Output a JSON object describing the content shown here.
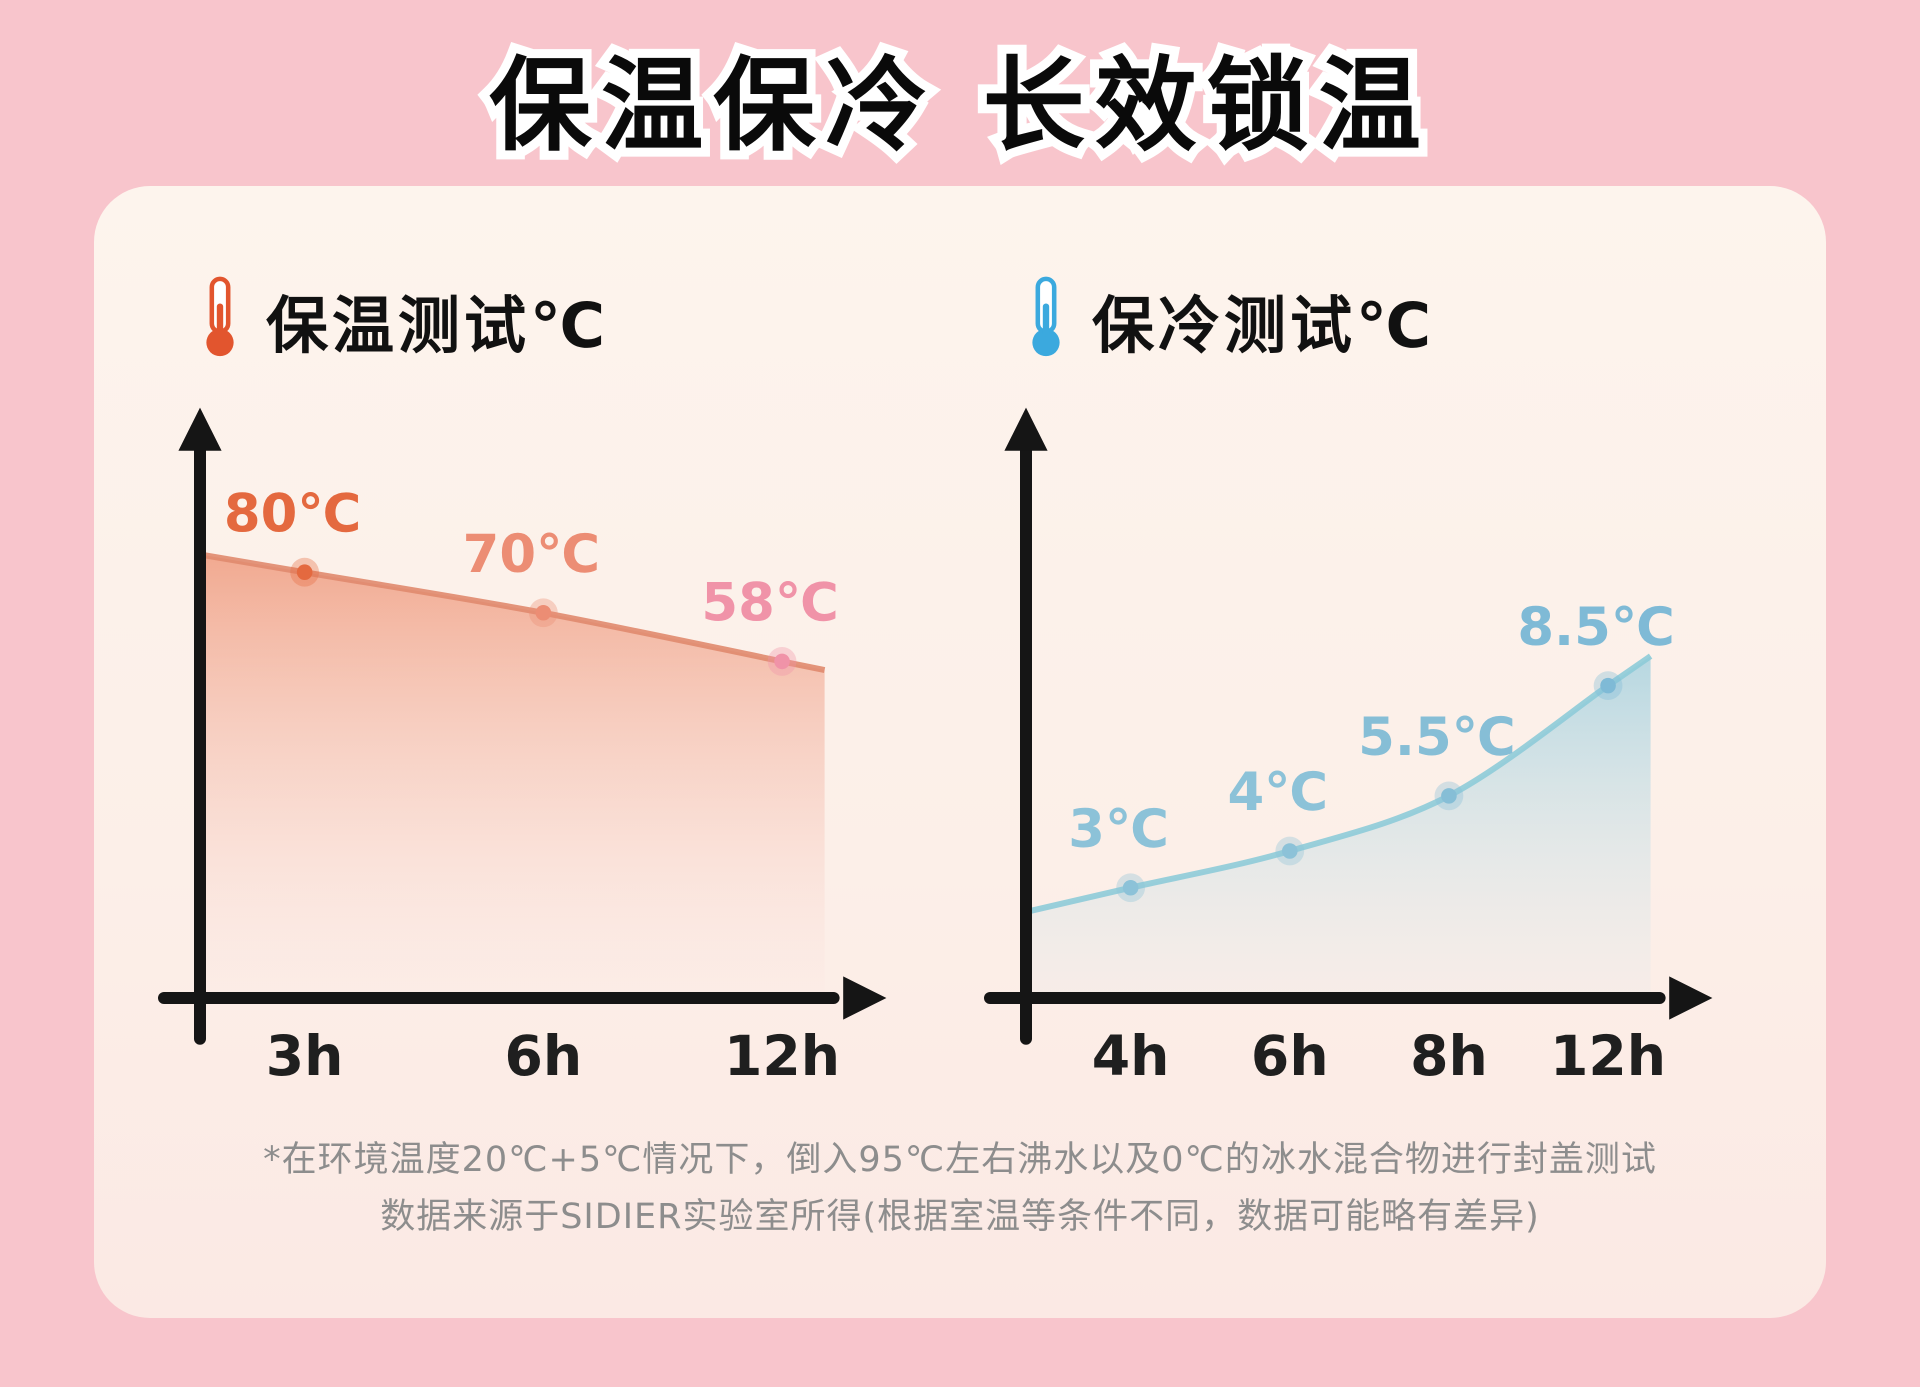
{
  "page": {
    "title": "保温保冷 长效锁温",
    "footnote_line1": "*在环境温度20℃+5℃情况下，倒入95℃左右沸水以及0℃的冰水混合物进行封盖测试",
    "footnote_line2": "数据来源于SIDIER实验室所得(根据室温等条件不同，数据可能略有差异)"
  },
  "colors": {
    "background": "#f8c5cc",
    "card": "#fdf2ec",
    "footnote": "#8d8d8d",
    "axis": "#151515",
    "hot_accent": "#e2552e",
    "cold_accent": "#3ba9de"
  },
  "chart_data": [
    {
      "type": "line",
      "title": "保温测试℃",
      "icon": "hot-thermometer-icon",
      "accent": "#e2552e",
      "categories": [
        "3h",
        "6h",
        "12h"
      ],
      "values": [
        80,
        70,
        58
      ],
      "point_labels": [
        "80℃",
        "70℃",
        "58℃"
      ],
      "label_colors": [
        "#e4693f",
        "#ec8d74",
        "#f093a8"
      ],
      "line_color": "#e08a6e",
      "area_top_color": "rgba(232,110,70,0.55)",
      "area_mid_color": "rgba(240,160,140,0.28)",
      "area_bottom_color": "rgba(248,205,205,0.03)",
      "ylim": [
        -25,
        120
      ],
      "xlabel": "",
      "ylabel": "",
      "grid": false,
      "legend": "none"
    },
    {
      "type": "line",
      "title": "保冷测试℃",
      "icon": "cold-thermometer-icon",
      "accent": "#3ba9de",
      "categories": [
        "4h",
        "6h",
        "8h",
        "12h"
      ],
      "values": [
        3,
        4,
        5.5,
        8.5
      ],
      "point_labels": [
        "3℃",
        "4℃",
        "5.5℃",
        "8.5℃"
      ],
      "label_colors": [
        "#8cc2d8",
        "#8cc2d8",
        "#86bed6",
        "#7fbad6"
      ],
      "line_color": "#8ecbd8",
      "area_top_color": "rgba(140,200,220,0.62)",
      "area_mid_color": "rgba(170,215,230,0.30)",
      "area_bottom_color": "rgba(195,228,238,0.08)",
      "ylim": [
        0,
        16
      ],
      "xlabel": "",
      "ylabel": "",
      "grid": false,
      "legend": "none"
    }
  ]
}
